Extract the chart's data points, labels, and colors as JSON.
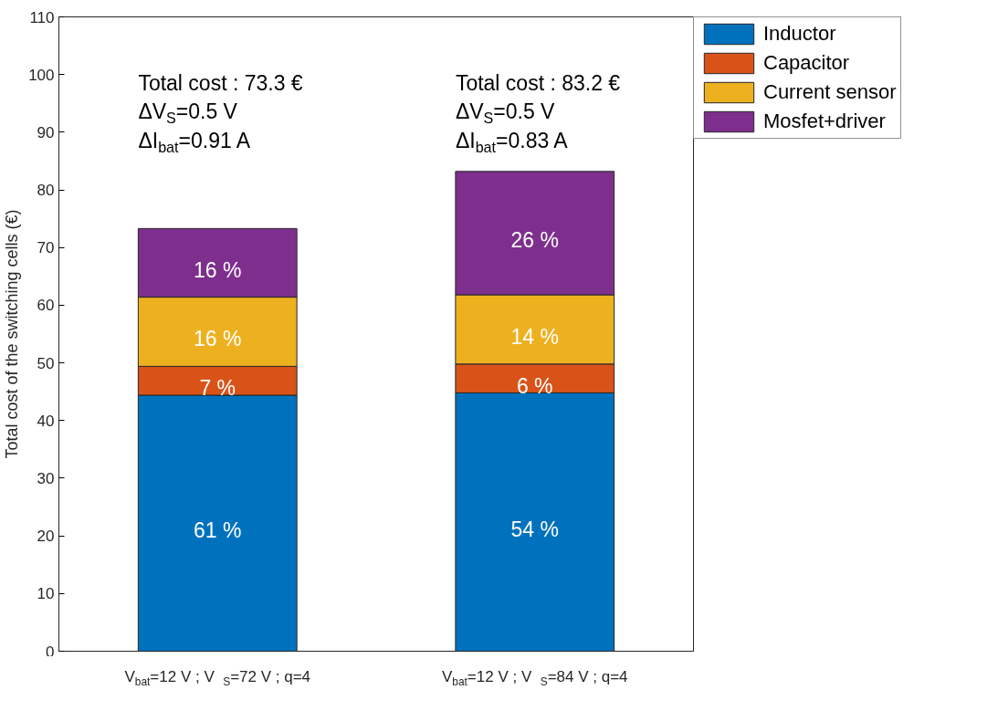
{
  "chart_data": {
    "type": "bar",
    "stacked": true,
    "ylabel": "Total cost of the switching cells (€)",
    "categories": [
      "V$_{bat}$=12 V  ;  V$_{S}$=72 V ; q=4",
      "V$_{bat}$=12 V  ;  V$_{S}$=84 V ; q=4"
    ],
    "series": [
      {
        "name": "Inductor",
        "color": "#0072bd",
        "values": [
          44.4,
          44.8
        ]
      },
      {
        "name": "Capacitor",
        "color": "#d95319",
        "values": [
          5.0,
          5.0
        ]
      },
      {
        "name": "Current sensor",
        "color": "#edb120",
        "values": [
          12.0,
          12.0
        ]
      },
      {
        "name": "Mosfet+driver",
        "color": "#7e2f8e",
        "values": [
          11.9,
          21.4
        ]
      }
    ],
    "annotations": [
      "Total cost : 73.3 €\nΔV$_{S}$=0.5 V\nΔI$_{bat}$=0.91 A",
      "Total cost : 83.2 €\nΔV$_{S}$=0.5 V\nΔI$_{bat}$=0.83 A",
      "61 %",
      "7 %",
      "16 %",
      "16 %",
      "54 %",
      "6 %",
      "14 %",
      "26 %"
    ],
    "ylim": [
      0,
      110
    ],
    "yticks": [
      0,
      10,
      20,
      30,
      40,
      50,
      60,
      70,
      80,
      90,
      100,
      110
    ],
    "grid": false,
    "legend": "top right"
  }
}
